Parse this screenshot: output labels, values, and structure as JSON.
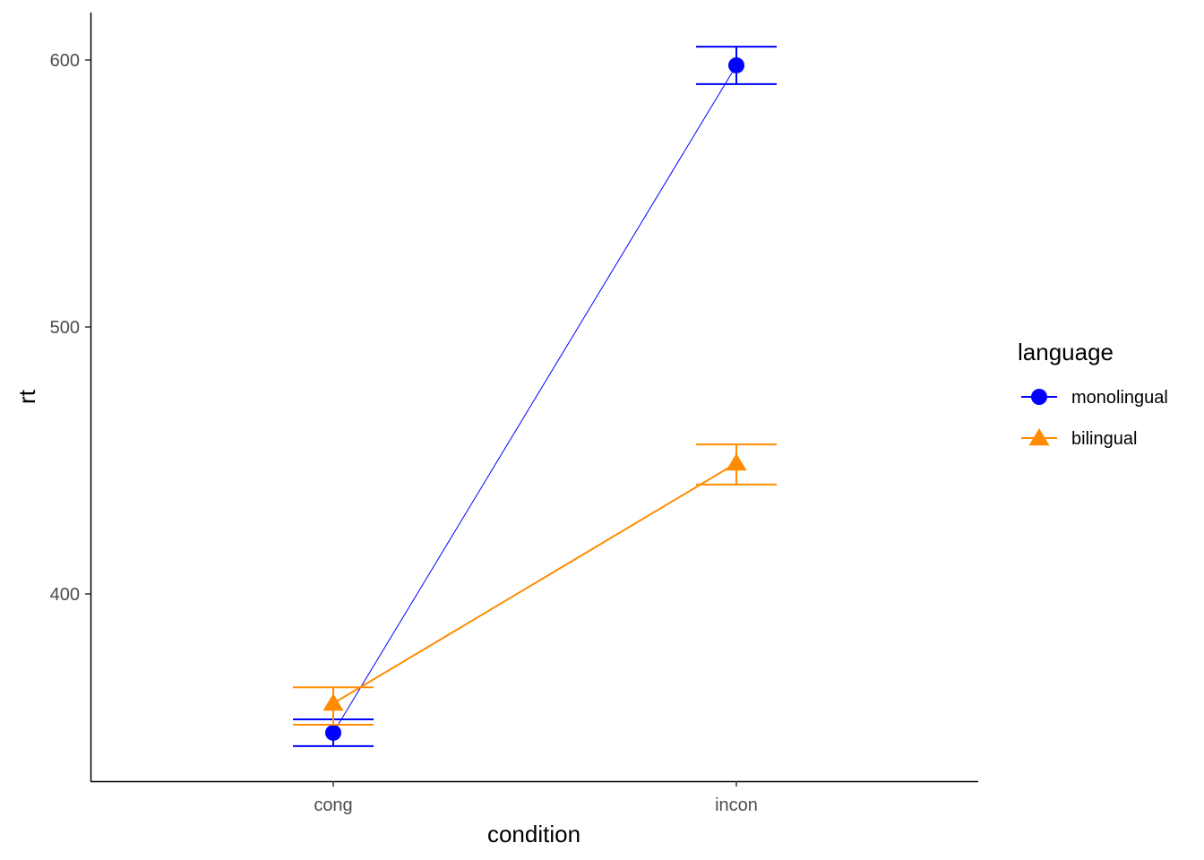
{
  "chart_data": {
    "type": "line",
    "title": "",
    "xlabel": "condition",
    "ylabel": "rt",
    "categories": [
      "cong",
      "incon"
    ],
    "ylim": [
      330,
      618
    ],
    "yticks": [
      400,
      500,
      600
    ],
    "grid": false,
    "legend": {
      "title": "language",
      "placement": "right"
    },
    "series": [
      {
        "name": "monolingual",
        "color": "#0000FF",
        "marker": "circle",
        "values": [
          348,
          598
        ],
        "error_low": [
          343,
          591
        ],
        "error_high": [
          353,
          605
        ]
      },
      {
        "name": "bilingual",
        "color": "#FF8C00",
        "marker": "triangle",
        "values": [
          359,
          449
        ],
        "error_low": [
          351,
          441
        ],
        "error_high": [
          365,
          456
        ]
      }
    ]
  }
}
